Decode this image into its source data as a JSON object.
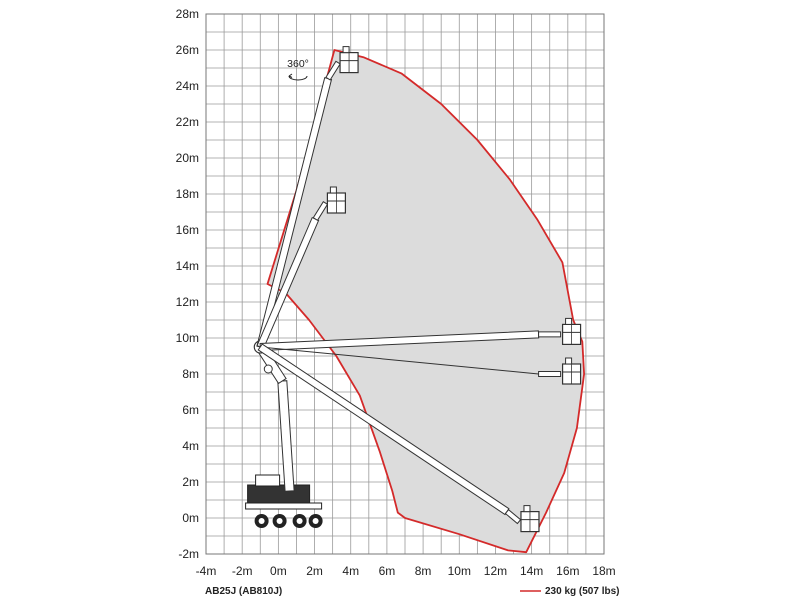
{
  "diagram": {
    "model_label": "AB25J (AB810J)",
    "load_label": "230 kg (507 lbs)",
    "rotation_label": "360°",
    "colors": {
      "envelope": "#d42a2a",
      "envelope_fill": "#dcdcdc",
      "grid": "#9a9a9a",
      "machine": "#333333"
    },
    "icons": [
      "rotation-arrow-icon",
      "platform-basket-icon",
      "aerial-work-platform-icon"
    ]
  },
  "chart_data": {
    "type": "scatter",
    "title": "",
    "xlabel": "",
    "ylabel": "",
    "xlim": [
      -4,
      18
    ],
    "ylim": [
      -2,
      28
    ],
    "x_ticks": [
      -4,
      -2,
      0,
      2,
      4,
      6,
      8,
      10,
      12,
      14,
      16,
      18
    ],
    "y_ticks": [
      -2,
      0,
      2,
      4,
      6,
      8,
      10,
      12,
      14,
      16,
      18,
      20,
      22,
      24,
      26,
      28
    ],
    "x_tick_labels": [
      "-4m",
      "-2m",
      "0m",
      "2m",
      "4m",
      "6m",
      "8m",
      "10m",
      "12m",
      "14m",
      "16m",
      "18m"
    ],
    "y_tick_labels": [
      "-2m",
      "0m",
      "2m",
      "4m",
      "6m",
      "8m",
      "10m",
      "12m",
      "14m",
      "16m",
      "18m",
      "20m",
      "22m",
      "24m",
      "26m",
      "28m"
    ],
    "grid": true,
    "series": [
      {
        "name": "230 kg (507 lbs)",
        "shape": "closed",
        "points": [
          [
            3.1,
            26.0
          ],
          [
            4.7,
            25.6
          ],
          [
            6.8,
            24.7
          ],
          [
            9.0,
            23.0
          ],
          [
            11.0,
            21.0
          ],
          [
            12.8,
            18.8
          ],
          [
            14.3,
            16.6
          ],
          [
            15.7,
            14.2
          ],
          [
            16.3,
            11.0
          ],
          [
            16.8,
            9.8
          ],
          [
            16.9,
            8.0
          ],
          [
            16.5,
            5.0
          ],
          [
            15.8,
            2.5
          ],
          [
            14.8,
            0.3
          ],
          [
            13.7,
            -1.9
          ],
          [
            12.7,
            -1.8
          ],
          [
            10.0,
            -0.9
          ],
          [
            7.0,
            0.0
          ],
          [
            6.6,
            0.3
          ],
          [
            6.3,
            1.5
          ],
          [
            5.6,
            3.7
          ],
          [
            4.5,
            6.8
          ],
          [
            3.2,
            9.0
          ],
          [
            1.7,
            11.0
          ],
          [
            0.4,
            12.5
          ],
          [
            -0.6,
            13.0
          ],
          [
            1.0,
            18.2
          ],
          [
            3.1,
            26.0
          ]
        ]
      }
    ],
    "machine": {
      "base": [
        0.4,
        0.5
      ],
      "pivot": [
        -1.0,
        9.5
      ],
      "jib_tips": [
        [
          3.3,
          25.3
        ],
        [
          2.6,
          17.5
        ],
        [
          15.6,
          10.2
        ],
        [
          15.6,
          8.0
        ],
        [
          13.3,
          -0.2
        ]
      ]
    }
  }
}
